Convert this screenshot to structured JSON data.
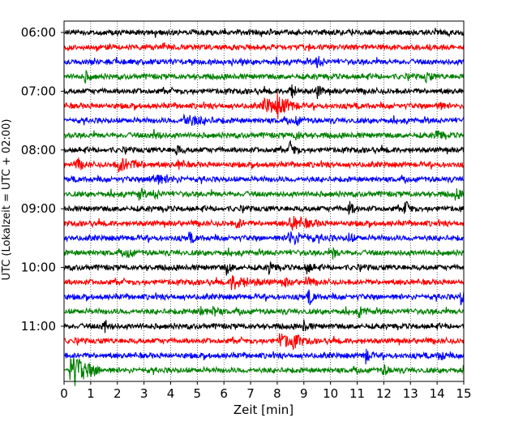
{
  "chart_data": {
    "type": "line",
    "subtype": "helicorder",
    "title": "",
    "xlabel": "Zeit  [min]",
    "ylabel": "UTC (Lokalzeit = UTC + 02:00)",
    "xlim": [
      0,
      15
    ],
    "x_ticks": [
      "0",
      "1",
      "2",
      "3",
      "4",
      "5",
      "6",
      "7",
      "8",
      "9",
      "10",
      "11",
      "12",
      "13",
      "14",
      "15"
    ],
    "y_tick_labels": [
      "06:00",
      "07:00",
      "08:00",
      "09:00",
      "10:00",
      "11:00"
    ],
    "y_tick_rows": [
      0,
      4,
      8,
      12,
      16,
      20
    ],
    "grid_x": true,
    "trace_start": "06:00",
    "trace_interval_min": 15,
    "trace_count": 24,
    "trace_colors": [
      "#000000",
      "#ff0000",
      "#0000ff",
      "#008000"
    ],
    "events": [
      {
        "row": 2,
        "minute": 9.5,
        "amp": 0.45
      },
      {
        "row": 3,
        "minute": 0.8,
        "amp": 0.3
      },
      {
        "row": 3,
        "minute": 13.6,
        "amp": 0.35
      },
      {
        "row": 4,
        "minute": 8.5,
        "amp": 0.6
      },
      {
        "row": 4,
        "minute": 9.5,
        "amp": 0.4
      },
      {
        "row": 5,
        "minute": 7.5,
        "amp": 0.5,
        "width": 0.5
      },
      {
        "row": 5,
        "minute": 8.0,
        "amp": 0.55,
        "width": 0.4
      },
      {
        "row": 5,
        "minute": 14.0,
        "amp": 0.3
      },
      {
        "row": 6,
        "minute": 4.5,
        "amp": 0.35,
        "width": 0.6
      },
      {
        "row": 6,
        "minute": 8.7,
        "amp": 0.3
      },
      {
        "row": 7,
        "minute": 3.4,
        "amp": 0.4
      },
      {
        "row": 7,
        "minute": 8.7,
        "amp": 0.3
      },
      {
        "row": 7,
        "minute": 14.0,
        "amp": 0.35
      },
      {
        "row": 8,
        "minute": 4.2,
        "amp": 0.35
      },
      {
        "row": 8,
        "minute": 8.5,
        "amp": 0.5
      },
      {
        "row": 9,
        "minute": 0.5,
        "amp": 0.4
      },
      {
        "row": 9,
        "minute": 2.0,
        "amp": 0.45,
        "width": 0.6
      },
      {
        "row": 9,
        "minute": 4.3,
        "amp": 0.3
      },
      {
        "row": 10,
        "minute": 3.2,
        "amp": 0.35,
        "width": 0.6
      },
      {
        "row": 11,
        "minute": 2.8,
        "amp": 0.35
      },
      {
        "row": 11,
        "minute": 3.4,
        "amp": 0.3
      },
      {
        "row": 11,
        "minute": 14.7,
        "amp": 0.3
      },
      {
        "row": 12,
        "minute": 10.7,
        "amp": 0.45
      },
      {
        "row": 12,
        "minute": 12.8,
        "amp": 0.45
      },
      {
        "row": 13,
        "minute": 6.5,
        "amp": 0.3
      },
      {
        "row": 13,
        "minute": 8.5,
        "amp": 0.5,
        "width": 0.5
      },
      {
        "row": 14,
        "minute": 4.7,
        "amp": 0.3
      },
      {
        "row": 14,
        "minute": 8.4,
        "amp": 0.4,
        "width": 0.7
      },
      {
        "row": 14,
        "minute": 10.7,
        "amp": 0.3
      },
      {
        "row": 15,
        "minute": 2.4,
        "amp": 0.3
      },
      {
        "row": 15,
        "minute": 10.1,
        "amp": 0.35
      },
      {
        "row": 16,
        "minute": 6.1,
        "amp": 0.4
      },
      {
        "row": 16,
        "minute": 7.7,
        "amp": 0.35
      },
      {
        "row": 16,
        "minute": 9.1,
        "amp": 0.35
      },
      {
        "row": 17,
        "minute": 6.3,
        "amp": 0.45,
        "width": 0.6
      },
      {
        "row": 17,
        "minute": 8.3,
        "amp": 0.3
      },
      {
        "row": 17,
        "minute": 9.1,
        "amp": 0.3
      },
      {
        "row": 18,
        "minute": 9.2,
        "amp": 0.45
      },
      {
        "row": 18,
        "minute": 14.9,
        "amp": 0.45
      },
      {
        "row": 19,
        "minute": 5.1,
        "amp": 0.3
      },
      {
        "row": 19,
        "minute": 5.6,
        "amp": 0.35
      },
      {
        "row": 19,
        "minute": 11.1,
        "amp": 0.35
      },
      {
        "row": 20,
        "minute": 1.5,
        "amp": 0.5
      },
      {
        "row": 20,
        "minute": 9.0,
        "amp": 0.3
      },
      {
        "row": 21,
        "minute": 8.1,
        "amp": 0.45,
        "width": 0.5
      },
      {
        "row": 21,
        "minute": 8.6,
        "amp": 0.4
      },
      {
        "row": 22,
        "minute": 11.3,
        "amp": 0.55
      },
      {
        "row": 22,
        "minute": 14.1,
        "amp": 0.35
      },
      {
        "row": 23,
        "minute": 0.25,
        "amp": 1.25,
        "width": 0.5
      },
      {
        "row": 23,
        "minute": 12.0,
        "amp": 0.3
      }
    ]
  }
}
